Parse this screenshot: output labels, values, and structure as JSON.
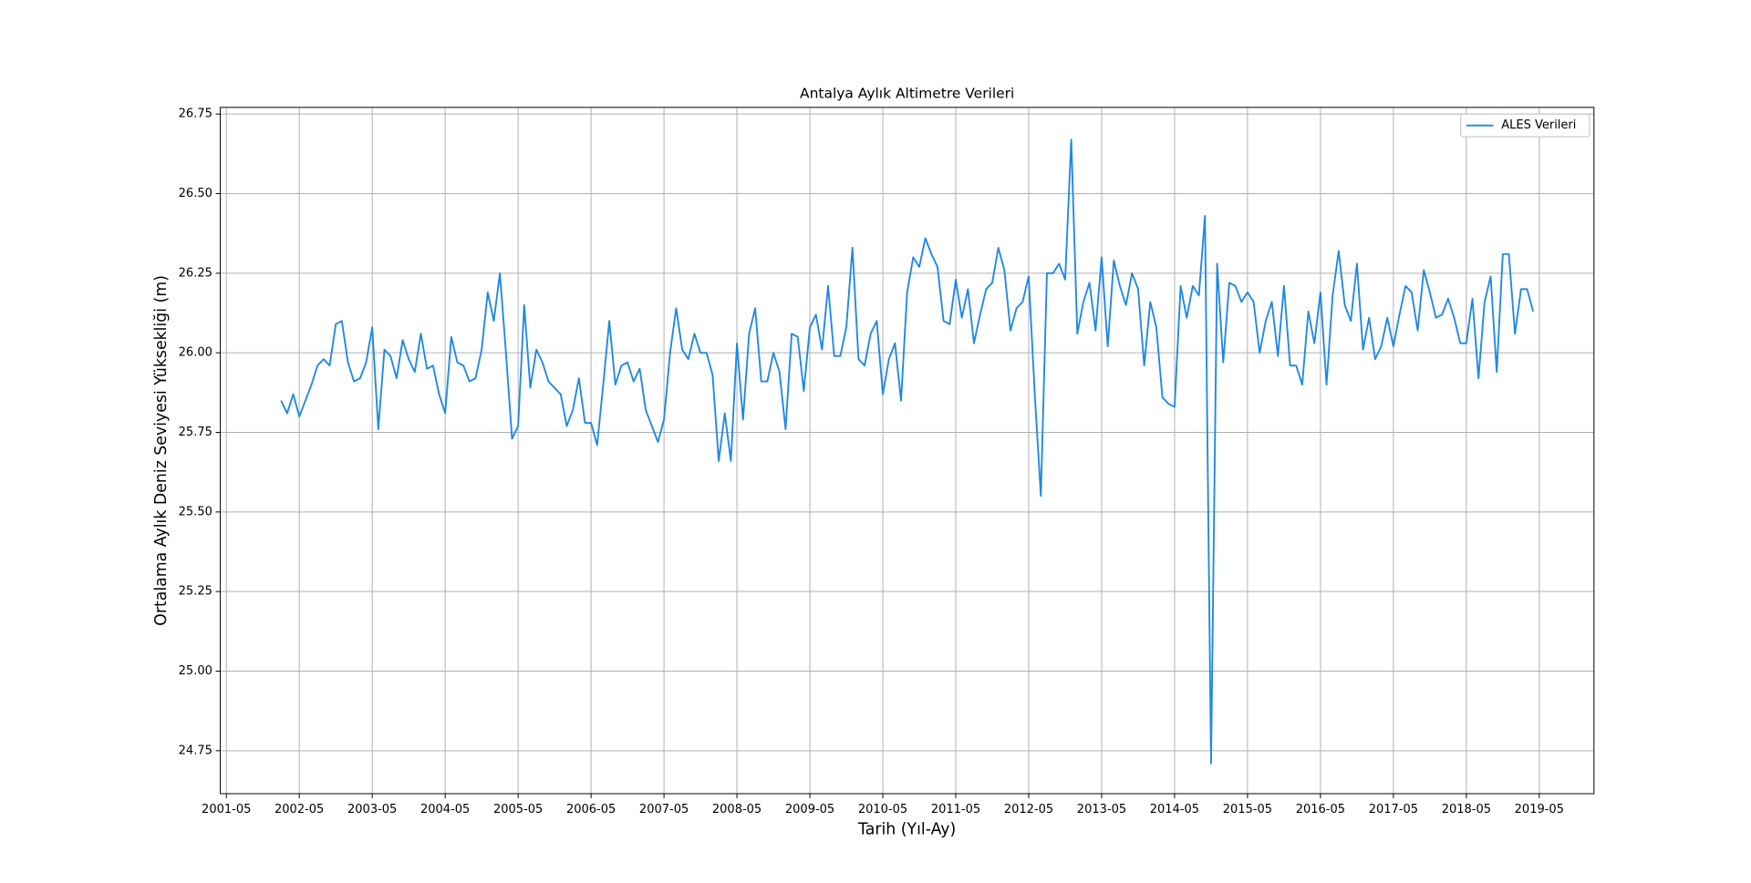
{
  "chart_data": {
    "type": "line",
    "title": "Antalya Aylık Altimetre Verileri",
    "xlabel": "Tarih (Yıl-Ay)",
    "ylabel": "Ortalama Aylık Deniz Seviyesi Yüksekliği (m)",
    "x": [
      "2002-02",
      "2002-03",
      "2002-04",
      "2002-05",
      "2002-06",
      "2002-07",
      "2002-08",
      "2002-09",
      "2002-10",
      "2002-11",
      "2002-12",
      "2003-01",
      "2003-02",
      "2003-03",
      "2003-04",
      "2003-05",
      "2003-06",
      "2003-07",
      "2003-08",
      "2003-09",
      "2003-10",
      "2003-11",
      "2003-12",
      "2004-01",
      "2004-02",
      "2004-03",
      "2004-04",
      "2004-05",
      "2004-06",
      "2004-07",
      "2004-08",
      "2004-09",
      "2004-10",
      "2004-11",
      "2004-12",
      "2005-01",
      "2005-02",
      "2005-03",
      "2005-04",
      "2005-05",
      "2005-06",
      "2005-07",
      "2005-08",
      "2005-09",
      "2005-10",
      "2005-11",
      "2005-12",
      "2006-01",
      "2006-02",
      "2006-03",
      "2006-04",
      "2006-05",
      "2006-06",
      "2006-07",
      "2006-08",
      "2006-09",
      "2006-10",
      "2006-11",
      "2006-12",
      "2007-01",
      "2007-02",
      "2007-03",
      "2007-04",
      "2007-05",
      "2007-06",
      "2007-07",
      "2007-08",
      "2007-09",
      "2007-10",
      "2007-11",
      "2007-12",
      "2008-01",
      "2008-02",
      "2008-03",
      "2008-04",
      "2008-05",
      "2008-06",
      "2008-07",
      "2008-08",
      "2008-09",
      "2008-10",
      "2008-11",
      "2008-12",
      "2009-01",
      "2009-02",
      "2009-03",
      "2009-04",
      "2009-05",
      "2009-06",
      "2009-07",
      "2009-08",
      "2009-09",
      "2009-10",
      "2009-11",
      "2009-12",
      "2010-01",
      "2010-02",
      "2010-03",
      "2010-04",
      "2010-05",
      "2010-06",
      "2010-07",
      "2010-08",
      "2010-09",
      "2010-10",
      "2010-11",
      "2010-12",
      "2011-01",
      "2011-02",
      "2011-03",
      "2011-04",
      "2011-05",
      "2011-06",
      "2011-07",
      "2011-08",
      "2011-09",
      "2011-10",
      "2011-11",
      "2011-12",
      "2012-01",
      "2012-02",
      "2012-03",
      "2012-04",
      "2012-05",
      "2012-06",
      "2012-07",
      "2012-08",
      "2012-09",
      "2012-10",
      "2012-11",
      "2012-12",
      "2013-01",
      "2013-02",
      "2013-03",
      "2013-04",
      "2013-05",
      "2013-06",
      "2013-07",
      "2013-08",
      "2013-09",
      "2013-10",
      "2013-11",
      "2013-12",
      "2014-01",
      "2014-02",
      "2014-03",
      "2014-04",
      "2014-05",
      "2014-06",
      "2014-07",
      "2014-08",
      "2014-09",
      "2014-10",
      "2014-11",
      "2014-12",
      "2015-01",
      "2015-02",
      "2015-03",
      "2015-04",
      "2015-05",
      "2015-06",
      "2015-07",
      "2015-08",
      "2015-09",
      "2015-10",
      "2015-11",
      "2015-12",
      "2016-01",
      "2016-02",
      "2016-03",
      "2016-04",
      "2016-05",
      "2016-06",
      "2016-07",
      "2016-08",
      "2016-09",
      "2016-10",
      "2016-11",
      "2016-12",
      "2017-01",
      "2017-02",
      "2017-03",
      "2017-04",
      "2017-05",
      "2017-06",
      "2017-07",
      "2017-08",
      "2017-09",
      "2017-10",
      "2017-11",
      "2017-12",
      "2018-01",
      "2018-02",
      "2018-03",
      "2018-04",
      "2018-05",
      "2018-06",
      "2018-07",
      "2018-08",
      "2018-09",
      "2018-10",
      "2018-11",
      "2018-12",
      "2019-01",
      "2019-02",
      "2019-03",
      "2019-04"
    ],
    "series": [
      {
        "name": "ALES Verileri",
        "color": "#1e88e5",
        "values": [
          25.85,
          25.81,
          25.87,
          25.8,
          25.85,
          25.9,
          25.96,
          25.98,
          25.96,
          26.09,
          26.1,
          25.97,
          25.91,
          25.92,
          25.97,
          26.08,
          25.76,
          26.01,
          25.99,
          25.92,
          26.04,
          25.98,
          25.94,
          26.06,
          25.95,
          25.96,
          25.87,
          25.81,
          26.05,
          25.97,
          25.96,
          25.91,
          25.92,
          26.01,
          26.19,
          26.1,
          26.25,
          26.0,
          25.73,
          25.77,
          26.15,
          25.89,
          26.01,
          25.97,
          25.91,
          25.89,
          25.87,
          25.77,
          25.82,
          25.92,
          25.78,
          25.78,
          25.71,
          25.9,
          26.1,
          25.9,
          25.96,
          25.97,
          25.91,
          25.95,
          25.82,
          25.77,
          25.72,
          25.79,
          26.0,
          26.14,
          26.01,
          25.98,
          26.06,
          26.0,
          26.0,
          25.93,
          25.66,
          25.81,
          25.66,
          26.03,
          25.79,
          26.06,
          26.14,
          25.91,
          25.91,
          26.0,
          25.94,
          25.76,
          26.06,
          26.05,
          25.88,
          26.08,
          26.12,
          26.01,
          26.21,
          25.99,
          25.99,
          26.08,
          26.33,
          25.98,
          25.96,
          26.06,
          26.1,
          25.87,
          25.98,
          26.03,
          25.85,
          26.19,
          26.3,
          26.27,
          26.36,
          26.31,
          26.27,
          26.1,
          26.09,
          26.23,
          26.11,
          26.2,
          26.03,
          26.12,
          26.2,
          26.22,
          26.33,
          26.26,
          26.07,
          26.14,
          26.16,
          26.24,
          25.87,
          25.55,
          26.25,
          26.25,
          26.28,
          26.23,
          26.67,
          26.06,
          26.16,
          26.22,
          26.07,
          26.3,
          26.02,
          26.29,
          26.21,
          26.15,
          26.25,
          26.2,
          25.96,
          26.16,
          26.08,
          25.86,
          25.84,
          25.83,
          26.21,
          26.11,
          26.21,
          26.18,
          26.43,
          24.71,
          26.28,
          25.97,
          26.22,
          26.21,
          26.16,
          26.19,
          26.16,
          26.0,
          26.1,
          26.16,
          25.99,
          26.21,
          25.96,
          25.96,
          25.9,
          26.13,
          26.03,
          26.19,
          25.9,
          26.18,
          26.32,
          26.15,
          26.1,
          26.28,
          26.01,
          26.11,
          25.98,
          26.02,
          26.11,
          26.02,
          26.12,
          26.21,
          26.19,
          26.07,
          26.26,
          26.19,
          26.11,
          26.12,
          26.17,
          26.11,
          26.03,
          26.03,
          26.17,
          25.92,
          26.16,
          26.24,
          25.94,
          26.31,
          26.31,
          26.06,
          26.2,
          26.2,
          26.13
        ]
      }
    ],
    "xlim": [
      "2001-04",
      "2020-02"
    ],
    "xticks": [
      "2001-05",
      "2002-05",
      "2003-05",
      "2004-05",
      "2005-05",
      "2006-05",
      "2007-05",
      "2008-05",
      "2009-05",
      "2010-05",
      "2011-05",
      "2012-05",
      "2013-05",
      "2014-05",
      "2015-05",
      "2016-05",
      "2017-05",
      "2018-05",
      "2019-05"
    ],
    "ylim": [
      24.615,
      26.771
    ],
    "yticks": [
      {
        "value": 24.75,
        "label": "24.75"
      },
      {
        "value": 25,
        "label": "25.00"
      },
      {
        "value": 25.25,
        "label": "25.25"
      },
      {
        "value": 25.5,
        "label": "25.50"
      },
      {
        "value": 25.75,
        "label": "25.75"
      },
      {
        "value": 26,
        "label": "26.00"
      },
      {
        "value": 26.25,
        "label": "26.25"
      },
      {
        "value": 26.5,
        "label": "26.50"
      },
      {
        "value": 26.75,
        "label": "26.75"
      }
    ],
    "grid": true,
    "legend": "upper right"
  }
}
